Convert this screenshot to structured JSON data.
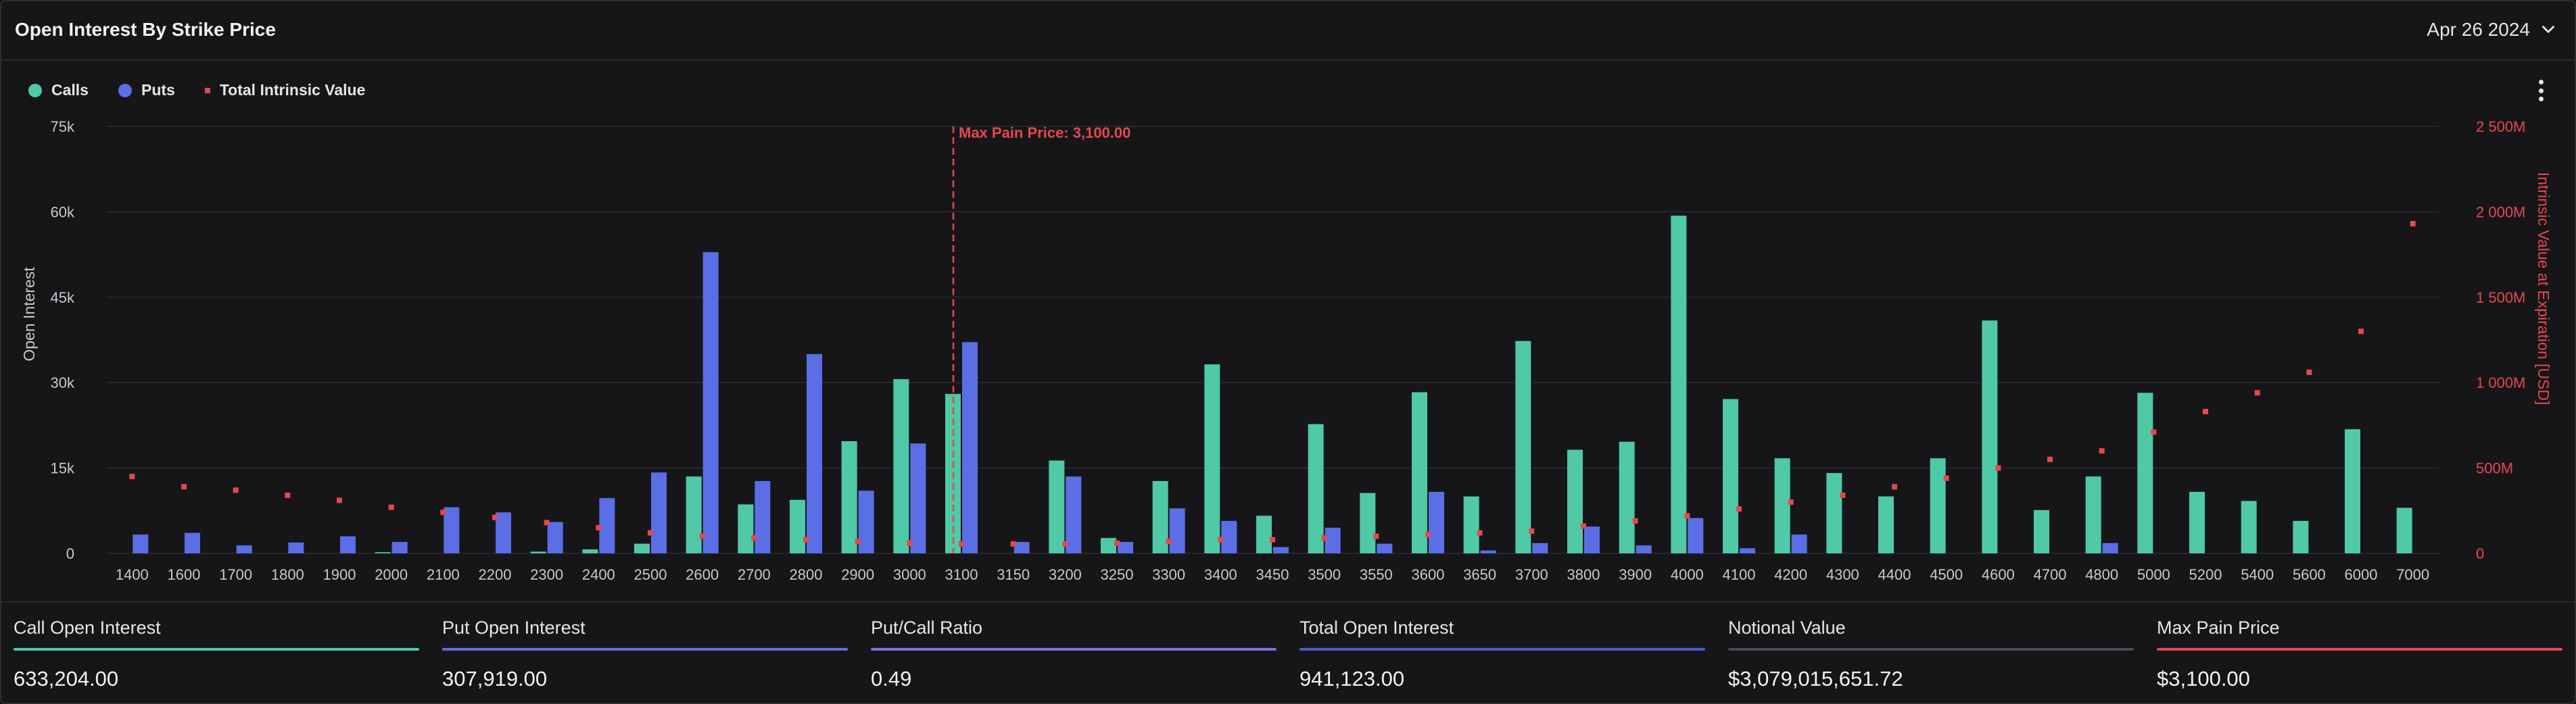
{
  "header": {
    "title": "Open Interest By Strike Price",
    "date": "Apr 26 2024"
  },
  "legend": [
    {
      "label": "Calls",
      "color": "#4fc9a6",
      "icon": "circle"
    },
    {
      "label": "Puts",
      "color": "#5b6ee6",
      "icon": "circle"
    },
    {
      "label": "Total Intrinsic Value",
      "color": "#e5484d",
      "icon": "square"
    }
  ],
  "chart_data": {
    "type": "bar",
    "categories": [
      "1400",
      "1600",
      "1700",
      "1800",
      "1900",
      "2000",
      "2100",
      "2200",
      "2300",
      "2400",
      "2500",
      "2600",
      "2700",
      "2800",
      "2900",
      "3000",
      "3100",
      "3150",
      "3200",
      "3250",
      "3300",
      "3400",
      "3450",
      "3500",
      "3550",
      "3600",
      "3650",
      "3700",
      "3800",
      "3900",
      "4000",
      "4100",
      "4200",
      "4300",
      "4400",
      "4500",
      "4600",
      "4700",
      "4800",
      "5000",
      "5200",
      "5400",
      "5600",
      "6000",
      "7000"
    ],
    "series": [
      {
        "name": "Calls",
        "axis": "left",
        "color": "#4fc9a6",
        "values": [
          0,
          0,
          0,
          0,
          0,
          200,
          0,
          0,
          300,
          700,
          1700,
          13500,
          8600,
          9400,
          19700,
          30600,
          28000,
          0,
          16300,
          2700,
          12700,
          33200,
          6600,
          22700,
          10600,
          28300,
          10000,
          37300,
          18200,
          19600,
          59300,
          27100,
          16700,
          14100,
          10000,
          16700,
          40900,
          7600,
          13500,
          28200,
          10800,
          9200,
          5700,
          21800,
          8000
        ]
      },
      {
        "name": "Puts",
        "axis": "left",
        "color": "#5b6ee6",
        "values": [
          3300,
          3600,
          1400,
          1900,
          3000,
          2000,
          8100,
          7200,
          5500,
          9700,
          14200,
          52900,
          12700,
          35000,
          11000,
          19300,
          37100,
          2000,
          13500,
          2000,
          7900,
          5700,
          1100,
          4500,
          1700,
          10800,
          500,
          1800,
          4700,
          1400,
          6200,
          900,
          3300,
          0,
          0,
          0,
          0,
          0,
          1800,
          0,
          0,
          0,
          0,
          0,
          0
        ]
      },
      {
        "name": "Total Intrinsic Value",
        "axis": "right",
        "type": "scatter",
        "color": "#e5484d",
        "values": [
          450000,
          390000,
          370000,
          340000,
          310000,
          270000,
          240000,
          210000,
          180000,
          150000,
          120000,
          100000,
          90000,
          80000,
          70000,
          60000,
          55000,
          55000,
          55000,
          60000,
          70000,
          80000,
          80000,
          90000,
          100000,
          110000,
          120000,
          130000,
          160000,
          190000,
          220000,
          260000,
          300000,
          340000,
          390000,
          440000,
          500000,
          550000,
          600000,
          710000,
          830000,
          940000,
          1060000,
          1300000,
          1930000
        ]
      }
    ],
    "left_axis": {
      "label": "Open Interest",
      "ylim": [
        0,
        75000
      ],
      "ticks": [
        "0",
        "15k",
        "30k",
        "45k",
        "60k",
        "75k"
      ]
    },
    "right_axis": {
      "label": "Intrinsic Value at Expiration [USD]",
      "ylim": [
        0,
        2500000
      ],
      "ticks": [
        "0",
        "500M",
        "1 000M",
        "1 500M",
        "2 000M",
        "2 500M"
      ]
    },
    "annotation": {
      "label": "Max Pain Price: 3,100.00",
      "category": "3100",
      "color": "#e5484d"
    },
    "grid": true
  },
  "stats": [
    {
      "label": "Call Open Interest",
      "value": "633,204.00",
      "color": "#4fc9a6"
    },
    {
      "label": "Put Open Interest",
      "value": "307,919.00",
      "color": "#5b6ee6"
    },
    {
      "label": "Put/Call Ratio",
      "value": "0.49",
      "color": "#7b6fe0"
    },
    {
      "label": "Total Open Interest",
      "value": "941,123.00",
      "color": "#4a5bd0"
    },
    {
      "label": "Notional Value",
      "value": "$3,079,015,651.72",
      "color": "#4a4a52"
    },
    {
      "label": "Max Pain Price",
      "value": "$3,100.00",
      "color": "#e5484d"
    }
  ]
}
